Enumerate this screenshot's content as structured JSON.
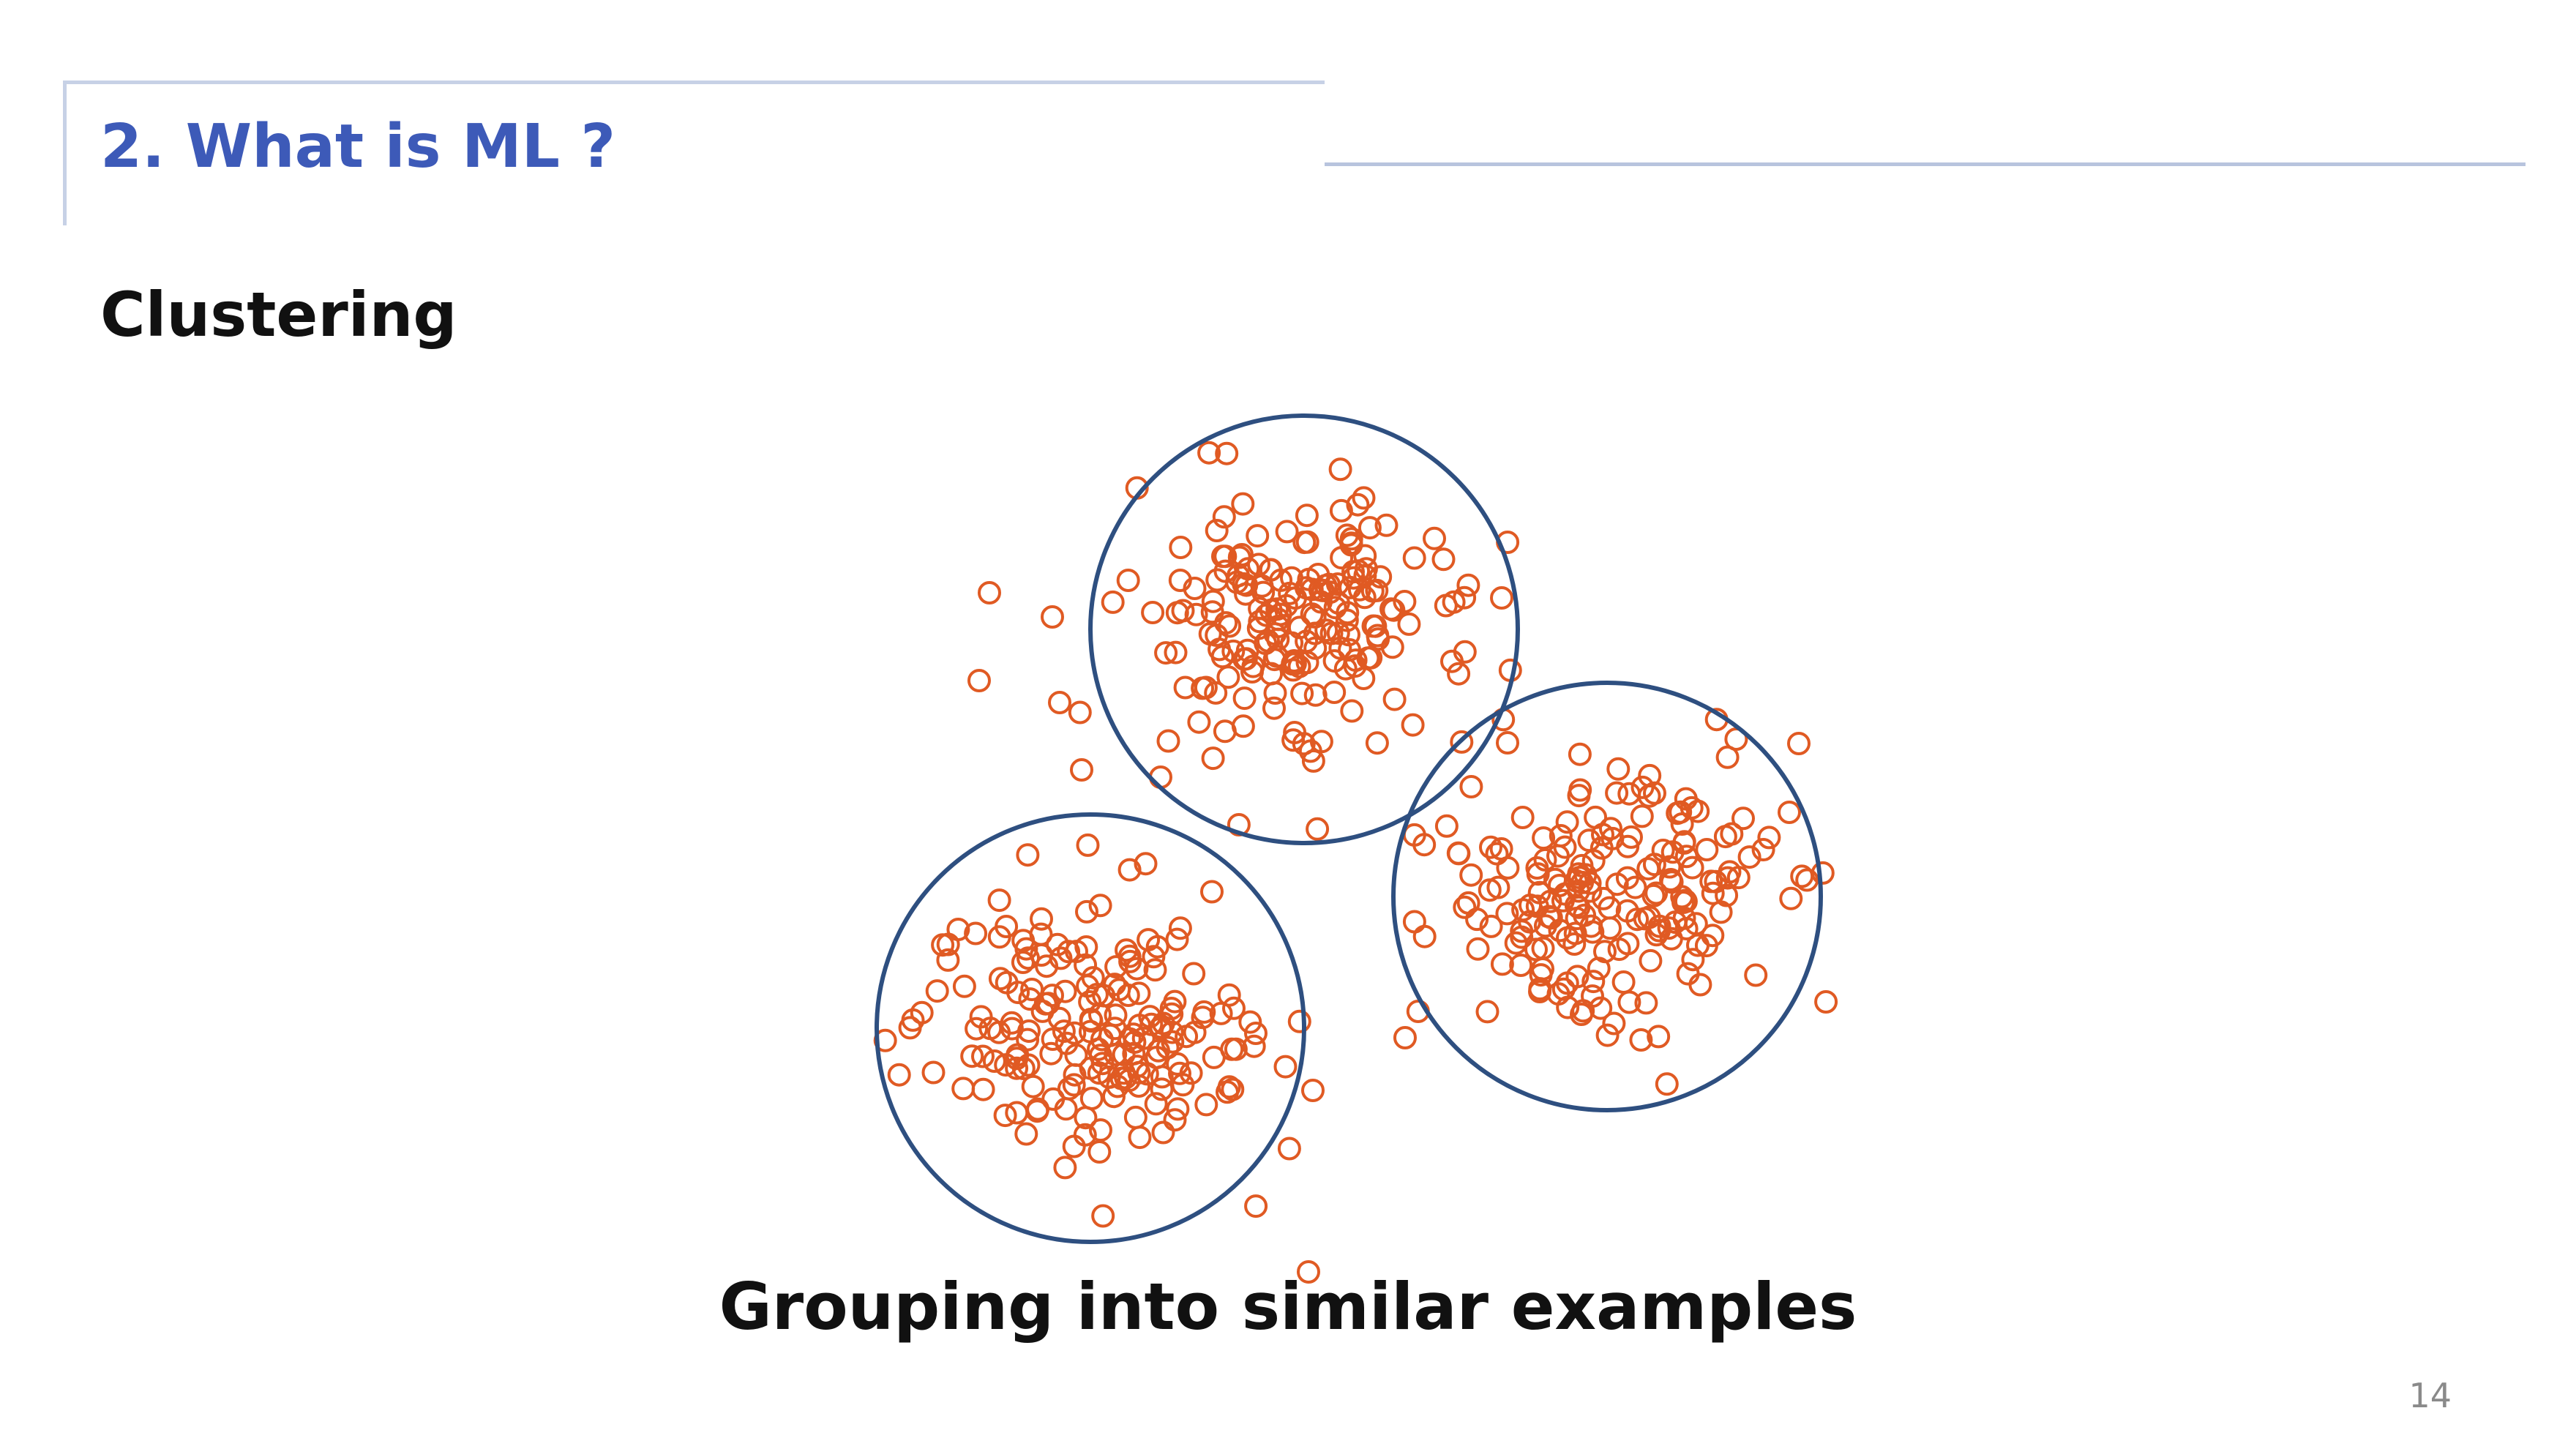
{
  "slide": {
    "title": "2. What is ML ?",
    "heading": "Clustering",
    "caption": "Grouping into similar examples",
    "page_number": "14"
  },
  "figure": {
    "description_icon": "cluster-scatter",
    "point_color": "#e05a23",
    "circle_color": "#2e4f80",
    "cluster_count": 3
  },
  "colors": {
    "title": "#3d5ab8",
    "frame": "#c7d1e6",
    "text": "#111111",
    "page_number": "#8a8a8a"
  }
}
